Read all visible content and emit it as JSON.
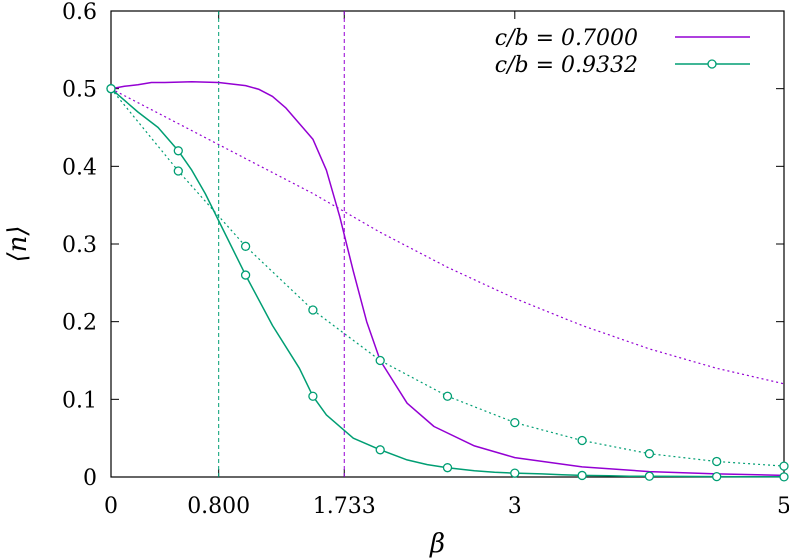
{
  "chart_data": {
    "type": "line",
    "xlabel": "β",
    "ylabel": "⟨n⟩",
    "xlim": [
      0,
      5
    ],
    "ylim": [
      0,
      0.6
    ],
    "x_ticks": [
      0,
      0.8,
      1.733,
      3,
      5
    ],
    "x_tick_labels": [
      "0",
      "0.800",
      "1.733",
      "3",
      "5"
    ],
    "y_ticks": [
      0,
      0.1,
      0.2,
      0.3,
      0.4,
      0.5,
      0.6
    ],
    "y_tick_labels": [
      "0",
      "0.1",
      "0.2",
      "0.3",
      "0.4",
      "0.5",
      "0.6"
    ],
    "grid": false,
    "legend_position": "top-right",
    "colors": {
      "purple": "#9400d3",
      "green": "#009e73"
    },
    "vlines": [
      {
        "x": 0.8,
        "color_key": "green"
      },
      {
        "x": 1.733,
        "color_key": "purple"
      }
    ],
    "series": [
      {
        "name": "c/b = 0.7000",
        "style": "solid",
        "color_key": "purple",
        "markers": false,
        "x": [
          0,
          0.1,
          0.2,
          0.3,
          0.4,
          0.6,
          0.8,
          1.0,
          1.1,
          1.2,
          1.3,
          1.4,
          1.5,
          1.6,
          1.7,
          1.8,
          1.9,
          2.0,
          2.2,
          2.4,
          2.7,
          3.0,
          3.5,
          4.0,
          4.5,
          5.0
        ],
        "y": [
          0.5,
          0.503,
          0.505,
          0.508,
          0.508,
          0.509,
          0.508,
          0.504,
          0.499,
          0.49,
          0.475,
          0.455,
          0.435,
          0.395,
          0.335,
          0.265,
          0.2,
          0.15,
          0.095,
          0.065,
          0.04,
          0.025,
          0.013,
          0.007,
          0.004,
          0.002
        ]
      },
      {
        "name": "",
        "style": "dotted",
        "color_key": "purple",
        "markers": false,
        "x": [
          0,
          0.5,
          1.0,
          1.5,
          2.0,
          2.5,
          3.0,
          3.5,
          4.0,
          4.5,
          5.0
        ],
        "y": [
          0.5,
          0.455,
          0.41,
          0.365,
          0.315,
          0.27,
          0.23,
          0.195,
          0.165,
          0.14,
          0.12
        ]
      },
      {
        "name": "c/b = 0.9332",
        "style": "solid",
        "color_key": "green",
        "markers": true,
        "marker_indices": [
          0,
          3,
          6,
          9,
          12,
          15,
          18,
          21,
          24,
          27,
          30
        ],
        "x": [
          0,
          0.2,
          0.35,
          0.5,
          0.6,
          0.7,
          1.0,
          1.2,
          1.4,
          1.5,
          1.6,
          1.8,
          2.0,
          2.2,
          2.35,
          2.5,
          2.7,
          2.85,
          3.0,
          3.2,
          3.35,
          3.5,
          3.7,
          3.85,
          4.0,
          4.2,
          4.35,
          4.5,
          4.7,
          4.85,
          5.0
        ],
        "y": [
          0.5,
          0.47,
          0.45,
          0.42,
          0.395,
          0.365,
          0.26,
          0.195,
          0.14,
          0.104,
          0.08,
          0.05,
          0.035,
          0.022,
          0.016,
          0.012,
          0.008,
          0.006,
          0.005,
          0.004,
          0.003,
          0.002,
          0.0015,
          0.001,
          0.001,
          0.0008,
          0.0006,
          0.0005,
          0.0004,
          0.0003,
          0.0002
        ]
      },
      {
        "name": "",
        "style": "dotted",
        "color_key": "green",
        "markers": true,
        "x": [
          0,
          0.5,
          1.0,
          1.5,
          2.0,
          2.5,
          3.0,
          3.5,
          4.0,
          4.5,
          5.0
        ],
        "y": [
          0.5,
          0.394,
          0.297,
          0.215,
          0.15,
          0.104,
          0.07,
          0.047,
          0.03,
          0.02,
          0.014
        ]
      }
    ],
    "legend": [
      {
        "label": "c/b = 0.7000",
        "color_key": "purple",
        "markers": false
      },
      {
        "label": "c/b = 0.9332",
        "color_key": "green",
        "markers": true
      }
    ]
  }
}
